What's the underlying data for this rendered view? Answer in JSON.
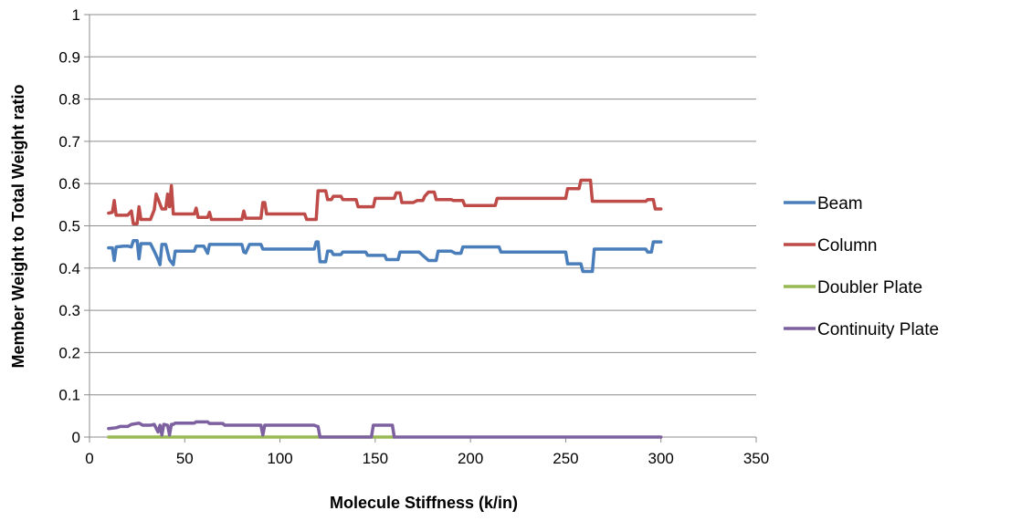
{
  "chart_data": {
    "type": "line",
    "title": "",
    "xlabel": "Molecule Stiffness (k/in)",
    "ylabel": "Member Weight to Total Weight ratio",
    "xlim": [
      0,
      350
    ],
    "ylim": [
      0,
      1
    ],
    "x_ticks": [
      "0",
      "50",
      "100",
      "150",
      "200",
      "250",
      "300",
      "350"
    ],
    "y_ticks": [
      "0",
      "0.1",
      "0.2",
      "0.3",
      "0.4",
      "0.5",
      "0.6",
      "0.7",
      "0.8",
      "0.9",
      "1"
    ],
    "grid": "horizontal",
    "legend_position": "right",
    "series": [
      {
        "name": "Beam",
        "color": "#4a7ebb",
        "points": [
          [
            10,
            0.448
          ],
          [
            12,
            0.448
          ],
          [
            13,
            0.418
          ],
          [
            14,
            0.45
          ],
          [
            18,
            0.452
          ],
          [
            20,
            0.452
          ],
          [
            22,
            0.45
          ],
          [
            23,
            0.465
          ],
          [
            25,
            0.465
          ],
          [
            26,
            0.422
          ],
          [
            27,
            0.458
          ],
          [
            32,
            0.458
          ],
          [
            34,
            0.44
          ],
          [
            36,
            0.42
          ],
          [
            37,
            0.408
          ],
          [
            38,
            0.456
          ],
          [
            40,
            0.456
          ],
          [
            42,
            0.42
          ],
          [
            44,
            0.408
          ],
          [
            45,
            0.44
          ],
          [
            55,
            0.44
          ],
          [
            56,
            0.452
          ],
          [
            60,
            0.452
          ],
          [
            62,
            0.435
          ],
          [
            63,
            0.456
          ],
          [
            80,
            0.456
          ],
          [
            81,
            0.438
          ],
          [
            82,
            0.436
          ],
          [
            84,
            0.456
          ],
          [
            90,
            0.456
          ],
          [
            91,
            0.445
          ],
          [
            118,
            0.445
          ],
          [
            119,
            0.462
          ],
          [
            120,
            0.462
          ],
          [
            121,
            0.415
          ],
          [
            124,
            0.415
          ],
          [
            125,
            0.44
          ],
          [
            127,
            0.44
          ],
          [
            128,
            0.432
          ],
          [
            132,
            0.432
          ],
          [
            133,
            0.438
          ],
          [
            145,
            0.438
          ],
          [
            146,
            0.43
          ],
          [
            155,
            0.43
          ],
          [
            156,
            0.42
          ],
          [
            162,
            0.42
          ],
          [
            163,
            0.438
          ],
          [
            172,
            0.438
          ],
          [
            173,
            0.438
          ],
          [
            175,
            0.43
          ],
          [
            178,
            0.418
          ],
          [
            182,
            0.418
          ],
          [
            183,
            0.44
          ],
          [
            190,
            0.44
          ],
          [
            192,
            0.435
          ],
          [
            195,
            0.435
          ],
          [
            196,
            0.45
          ],
          [
            215,
            0.45
          ],
          [
            216,
            0.438
          ],
          [
            250,
            0.438
          ],
          [
            251,
            0.41
          ],
          [
            258,
            0.41
          ],
          [
            259,
            0.392
          ],
          [
            264,
            0.392
          ],
          [
            265,
            0.445
          ],
          [
            292,
            0.445
          ],
          [
            293,
            0.438
          ],
          [
            295,
            0.438
          ],
          [
            296,
            0.462
          ],
          [
            300,
            0.462
          ]
        ]
      },
      {
        "name": "Column",
        "color": "#be4b48",
        "points": [
          [
            10,
            0.53
          ],
          [
            12,
            0.532
          ],
          [
            13,
            0.56
          ],
          [
            14,
            0.525
          ],
          [
            20,
            0.525
          ],
          [
            22,
            0.535
          ],
          [
            23,
            0.505
          ],
          [
            25,
            0.505
          ],
          [
            26,
            0.545
          ],
          [
            27,
            0.515
          ],
          [
            32,
            0.515
          ],
          [
            34,
            0.538
          ],
          [
            35,
            0.575
          ],
          [
            38,
            0.54
          ],
          [
            40,
            0.54
          ],
          [
            41,
            0.575
          ],
          [
            42,
            0.545
          ],
          [
            43,
            0.595
          ],
          [
            44,
            0.528
          ],
          [
            55,
            0.528
          ],
          [
            56,
            0.542
          ],
          [
            57,
            0.52
          ],
          [
            62,
            0.52
          ],
          [
            63,
            0.532
          ],
          [
            64,
            0.515
          ],
          [
            80,
            0.515
          ],
          [
            81,
            0.535
          ],
          [
            82,
            0.518
          ],
          [
            90,
            0.518
          ],
          [
            91,
            0.555
          ],
          [
            92,
            0.555
          ],
          [
            93,
            0.528
          ],
          [
            113,
            0.528
          ],
          [
            114,
            0.515
          ],
          [
            119,
            0.515
          ],
          [
            120,
            0.583
          ],
          [
            124,
            0.583
          ],
          [
            125,
            0.562
          ],
          [
            127,
            0.562
          ],
          [
            128,
            0.57
          ],
          [
            132,
            0.57
          ],
          [
            133,
            0.562
          ],
          [
            140,
            0.562
          ],
          [
            141,
            0.545
          ],
          [
            148,
            0.545
          ],
          [
            149,
            0.545
          ],
          [
            150,
            0.565
          ],
          [
            160,
            0.565
          ],
          [
            161,
            0.578
          ],
          [
            163,
            0.578
          ],
          [
            164,
            0.555
          ],
          [
            170,
            0.555
          ],
          [
            172,
            0.56
          ],
          [
            175,
            0.56
          ],
          [
            176,
            0.57
          ],
          [
            178,
            0.58
          ],
          [
            181,
            0.58
          ],
          [
            182,
            0.562
          ],
          [
            190,
            0.562
          ],
          [
            191,
            0.56
          ],
          [
            196,
            0.56
          ],
          [
            197,
            0.548
          ],
          [
            213,
            0.548
          ],
          [
            214,
            0.565
          ],
          [
            250,
            0.565
          ],
          [
            251,
            0.588
          ],
          [
            257,
            0.588
          ],
          [
            258,
            0.608
          ],
          [
            263,
            0.608
          ],
          [
            264,
            0.558
          ],
          [
            292,
            0.558
          ],
          [
            293,
            0.562
          ],
          [
            296,
            0.562
          ],
          [
            297,
            0.54
          ],
          [
            300,
            0.54
          ]
        ]
      },
      {
        "name": "Doubler Plate",
        "color": "#98b954",
        "points": [
          [
            10,
            0
          ],
          [
            160,
            0
          ]
        ]
      },
      {
        "name": "Continuity Plate",
        "color": "#7d60a0",
        "points": [
          [
            10,
            0.02
          ],
          [
            14,
            0.022
          ],
          [
            16,
            0.025
          ],
          [
            20,
            0.025
          ],
          [
            22,
            0.03
          ],
          [
            26,
            0.033
          ],
          [
            28,
            0.028
          ],
          [
            32,
            0.028
          ],
          [
            34,
            0.03
          ],
          [
            36,
            0.012
          ],
          [
            37,
            0.028
          ],
          [
            38,
            0.005
          ],
          [
            39,
            0.03
          ],
          [
            41,
            0.028
          ],
          [
            42,
            0.005
          ],
          [
            43,
            0.03
          ],
          [
            44,
            0.03
          ],
          [
            45,
            0.033
          ],
          [
            55,
            0.033
          ],
          [
            56,
            0.036
          ],
          [
            62,
            0.036
          ],
          [
            63,
            0.032
          ],
          [
            70,
            0.032
          ],
          [
            71,
            0.028
          ],
          [
            90,
            0.028
          ],
          [
            91,
            0.005
          ],
          [
            92,
            0.028
          ],
          [
            118,
            0.028
          ],
          [
            119,
            0.026
          ],
          [
            120,
            0.025
          ],
          [
            121,
            0.0
          ],
          [
            148,
            0.0
          ],
          [
            149,
            0.028
          ],
          [
            159,
            0.028
          ],
          [
            160,
            0.0
          ],
          [
            300,
            0.0
          ]
        ]
      }
    ]
  }
}
